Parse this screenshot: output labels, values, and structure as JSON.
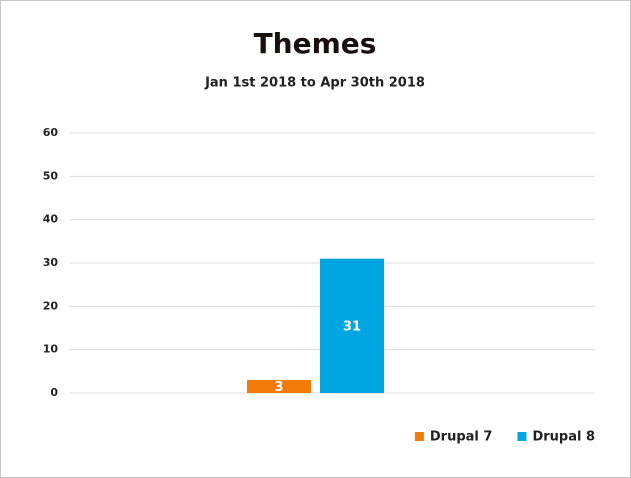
{
  "chart_data": {
    "type": "bar",
    "title": "Themes",
    "subtitle": "Jan 1st 2018 to Apr 30th 2018",
    "categories": [
      null
    ],
    "series": [
      {
        "name": "Drupal 7",
        "color": "#f47b0a",
        "values": [
          3
        ]
      },
      {
        "name": "Drupal 8",
        "color": "#00a6e2",
        "values": [
          31
        ]
      }
    ],
    "ylim": [
      0,
      60
    ],
    "yticks": [
      0,
      10,
      20,
      30,
      40,
      50,
      60
    ],
    "grid": true,
    "legend": "bottom-right"
  }
}
